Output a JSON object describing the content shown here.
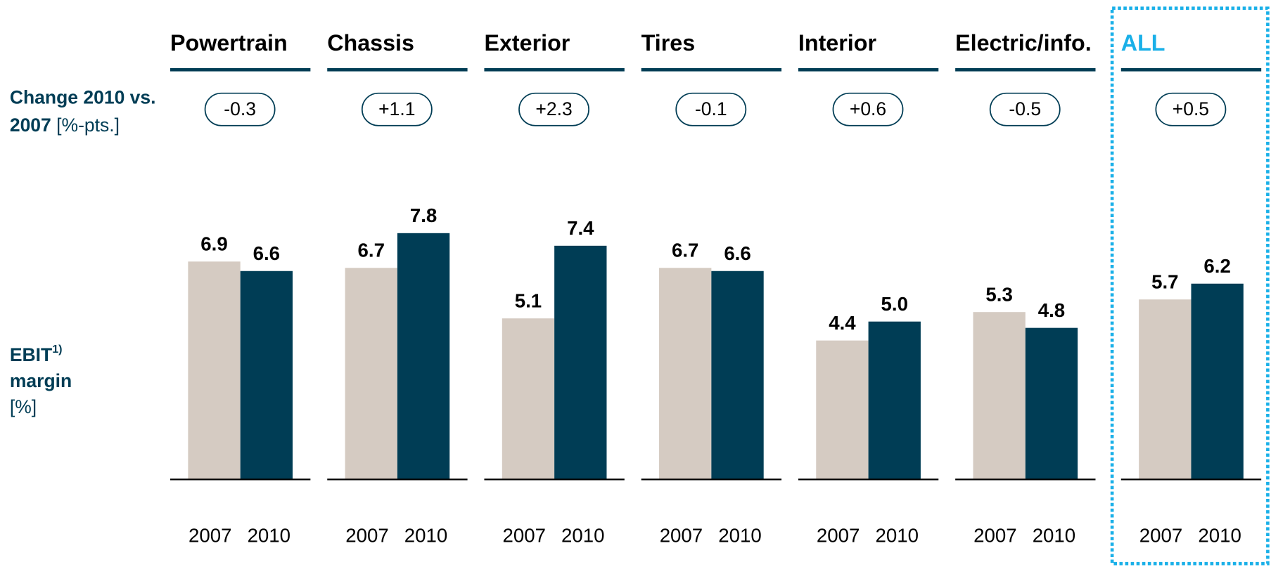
{
  "chart_data": {
    "type": "bar",
    "row_labels": {
      "change": {
        "bold_1": "Change 2010 vs.",
        "bold_2": "2007",
        "unit": "[%-pts.]"
      },
      "ebit": {
        "name": "EBIT",
        "footnote": "1)",
        "name2": "margin",
        "unit": "[%]"
      }
    },
    "categories": [
      "Powertrain",
      "Chassis",
      "Exterior",
      "Tires",
      "Interior",
      "Electric/info.",
      "ALL"
    ],
    "highlight": "ALL",
    "highlight_color": "#1ab0e8",
    "changes": {
      "values": [
        -0.3,
        1.1,
        2.3,
        -0.1,
        0.6,
        -0.5,
        0.5
      ],
      "value_labels": [
        "-0.3",
        "+1.1",
        "+2.3",
        "-0.1",
        "+0.6",
        "-0.5",
        "+0.5"
      ]
    },
    "series": [
      {
        "name": "2007",
        "color": "#d5cbc2",
        "values": [
          6.9,
          6.7,
          5.1,
          6.7,
          4.4,
          5.3,
          5.7
        ],
        "value_labels": [
          "6.9",
          "6.7",
          "5.1",
          "6.7",
          "4.4",
          "5.3",
          "5.7"
        ]
      },
      {
        "name": "2010",
        "color": "#003d55",
        "values": [
          6.6,
          7.8,
          7.4,
          6.6,
          5.0,
          4.8,
          6.2
        ],
        "value_labels": [
          "6.6",
          "7.8",
          "7.4",
          "6.6",
          "5.0",
          "4.8",
          "6.2"
        ]
      }
    ],
    "ylim": [
      0,
      10
    ]
  }
}
